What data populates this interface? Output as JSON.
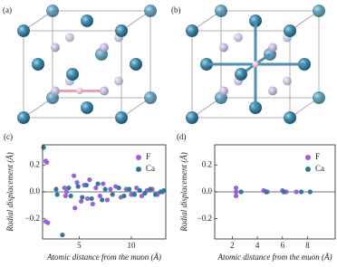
{
  "panel_labels": [
    "(a)",
    "(b)"
  ],
  "chart_data": [
    {
      "type": "scatter",
      "panel_label": "(c)",
      "x_label": "Atomic distance from the muon (Å)",
      "y_label": "Radial displacement (Å)",
      "xlim": [
        1.5,
        13.3
      ],
      "xticks": [
        5,
        10
      ],
      "ylim": [
        -0.35,
        0.35
      ],
      "yticks": [
        0.2,
        {
          "value": 0,
          "label": "0.0"
        },
        {
          "value": -0.2,
          "label": "−0.2"
        }
      ],
      "hlines": [
        0
      ],
      "legend": "upper right",
      "series": [
        {
          "name": "F",
          "color": "#9a62d8",
          "x": [
            1.8,
            1.9,
            1.8,
            2.0,
            3.6,
            3.7,
            3.8,
            4.5,
            4.6,
            4.8,
            5.2,
            5.5,
            5.8,
            6.0,
            6.3,
            6.6,
            7.0,
            7.3,
            7.7,
            8.0,
            8.5,
            9.0,
            9.5,
            10.0,
            10.5,
            11.0,
            11.5,
            12.0,
            12.5,
            13.0
          ],
          "values": [
            0.23,
            0.22,
            -0.22,
            -0.23,
            0.03,
            -0.03,
            0.0,
            0.12,
            -0.12,
            0.07,
            -0.07,
            0.05,
            -0.05,
            0.09,
            -0.09,
            0.03,
            -0.03,
            0.06,
            -0.06,
            0.02,
            0.04,
            -0.04,
            0.02,
            -0.02,
            0.03,
            -0.03,
            0.01,
            0.02,
            -0.02,
            0.0
          ]
        },
        {
          "name": "Ca",
          "color": "#2f7a9c",
          "x": [
            1.6,
            3.4,
            2.8,
            2.9,
            4.0,
            4.2,
            4.9,
            5.3,
            5.7,
            6.2,
            6.8,
            7.2,
            7.5,
            8.2,
            8.8,
            9.3,
            9.8,
            10.3,
            10.8,
            11.3,
            11.8,
            12.3,
            12.8,
            13.1
          ],
          "values": [
            0.33,
            -0.32,
            0.02,
            -0.02,
            0.03,
            -0.03,
            0.04,
            -0.04,
            0.05,
            -0.05,
            0.06,
            -0.06,
            0.02,
            -0.02,
            0.03,
            -0.03,
            0.02,
            -0.02,
            0.01,
            -0.01,
            0.02,
            -0.02,
            0.0,
            0.01
          ]
        }
      ]
    },
    {
      "type": "scatter",
      "panel_label": "(d)",
      "x_label": "Atomic distance from the muon (Å)",
      "y_label": "Radial displacement (Å)",
      "xlim": [
        0.6,
        10.2
      ],
      "xticks": [
        2,
        4,
        6,
        8
      ],
      "ylim": [
        -0.35,
        0.35
      ],
      "yticks": [
        0.2,
        {
          "value": 0,
          "label": "0.0"
        },
        {
          "value": -0.2,
          "label": "−0.2"
        }
      ],
      "hlines": [
        0
      ],
      "legend": "upper right",
      "series": [
        {
          "name": "F",
          "color": "#9a62d8",
          "x": [
            2.3,
            2.3,
            2.3,
            4.5,
            4.8,
            6.0,
            6.3,
            7.1
          ],
          "values": [
            0.03,
            -0.03,
            0.0,
            0.01,
            0.0,
            0.01,
            0.0,
            0.0
          ]
        },
        {
          "name": "Ca",
          "color": "#2f7a9c",
          "x": [
            2.7,
            4.7,
            6.1,
            7.5,
            8.2
          ],
          "values": [
            0.0,
            0.0,
            0.0,
            0.0,
            0.0
          ]
        }
      ]
    }
  ]
}
